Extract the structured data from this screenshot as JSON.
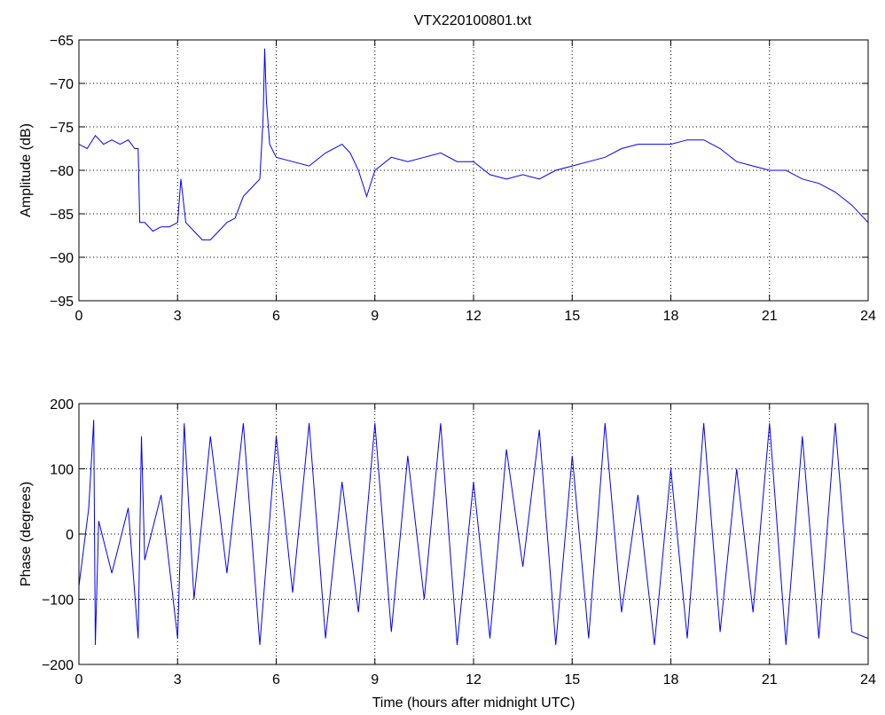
{
  "figure_title": "VTX220100801.txt",
  "colors": {
    "series": "#0000ff",
    "axes": "#000000",
    "background": "#ffffff"
  },
  "chart_data": [
    {
      "type": "line",
      "title": "VTX220100801.txt",
      "xlabel": "",
      "ylabel": "Amplitude (dB)",
      "xlim": [
        0,
        24
      ],
      "ylim": [
        -95,
        -65
      ],
      "xticks": [
        0,
        3,
        6,
        9,
        12,
        15,
        18,
        21,
        24
      ],
      "yticks": [
        -95,
        -90,
        -85,
        -80,
        -75,
        -70,
        -65
      ],
      "grid": true,
      "series": [
        {
          "x": [
            0,
            0.25,
            0.5,
            0.75,
            1.0,
            1.25,
            1.5,
            1.7,
            1.8,
            1.85,
            2.0,
            2.25,
            2.5,
            2.75,
            3.0,
            3.1,
            3.25,
            3.5,
            3.75,
            4.0,
            4.25,
            4.5,
            4.75,
            5.0,
            5.25,
            5.5,
            5.6,
            5.65,
            5.7,
            5.8,
            6.0,
            6.5,
            7.0,
            7.5,
            8.0,
            8.25,
            8.5,
            8.75,
            9.0,
            9.5,
            10.0,
            10.5,
            11.0,
            11.5,
            12.0,
            12.5,
            13.0,
            13.5,
            14.0,
            14.5,
            15.0,
            15.5,
            16.0,
            16.5,
            17.0,
            17.5,
            18.0,
            18.5,
            19.0,
            19.5,
            20.0,
            20.5,
            21.0,
            21.5,
            22.0,
            22.5,
            23.0,
            23.5,
            24.0
          ],
          "y": [
            -77,
            -77.5,
            -76,
            -77,
            -76.5,
            -77,
            -76.5,
            -77.5,
            -77.5,
            -86,
            -86,
            -87,
            -86.5,
            -86.5,
            -86,
            -81,
            -86,
            -87,
            -88,
            -88,
            -87,
            -86,
            -85.5,
            -83,
            -82,
            -81,
            -74,
            -66,
            -72,
            -77,
            -78.5,
            -79,
            -79.5,
            -78,
            -77,
            -78,
            -80,
            -83,
            -80,
            -78.5,
            -79,
            -78.5,
            -78,
            -79,
            -79,
            -80.5,
            -81,
            -80.5,
            -81,
            -80,
            -79.5,
            -79,
            -78.5,
            -77.5,
            -77,
            -77,
            -77,
            -76.5,
            -76.5,
            -77.5,
            -79,
            -79.5,
            -80,
            -80,
            -81,
            -81.5,
            -82.5,
            -84,
            -86
          ]
        }
      ]
    },
    {
      "type": "line",
      "title": "",
      "xlabel": "Time (hours after midnight UTC)",
      "ylabel": "Phase (degrees)",
      "xlim": [
        0,
        24
      ],
      "ylim": [
        -200,
        200
      ],
      "xticks": [
        0,
        3,
        6,
        9,
        12,
        15,
        18,
        21,
        24
      ],
      "yticks": [
        -200,
        -100,
        0,
        100,
        200
      ],
      "grid": true,
      "series": [
        {
          "x": [
            0,
            0.3,
            0.45,
            0.5,
            0.6,
            1.0,
            1.5,
            1.8,
            1.9,
            2.0,
            2.5,
            3.0,
            3.2,
            3.5,
            4.0,
            4.5,
            5.0,
            5.5,
            6.0,
            6.5,
            7.0,
            7.5,
            8.0,
            8.5,
            9.0,
            9.5,
            10.0,
            10.5,
            11.0,
            11.5,
            12.0,
            12.5,
            13.0,
            13.5,
            14.0,
            14.5,
            15.0,
            15.5,
            16.0,
            16.5,
            17.0,
            17.5,
            18.0,
            18.5,
            19.0,
            19.5,
            20.0,
            20.5,
            21.0,
            21.5,
            22.0,
            22.5,
            23.0,
            23.5,
            24.0
          ],
          "y": [
            -80,
            40,
            175,
            -170,
            20,
            -60,
            40,
            -160,
            150,
            -40,
            60,
            -160,
            170,
            -100,
            150,
            -60,
            170,
            -170,
            150,
            -90,
            170,
            -160,
            80,
            -120,
            170,
            -150,
            120,
            -100,
            170,
            -170,
            80,
            -160,
            130,
            -50,
            160,
            -170,
            120,
            -160,
            170,
            -120,
            60,
            -170,
            100,
            -160,
            170,
            -150,
            100,
            -120,
            170,
            -170,
            150,
            -160,
            170,
            -150,
            -160
          ]
        }
      ]
    }
  ]
}
